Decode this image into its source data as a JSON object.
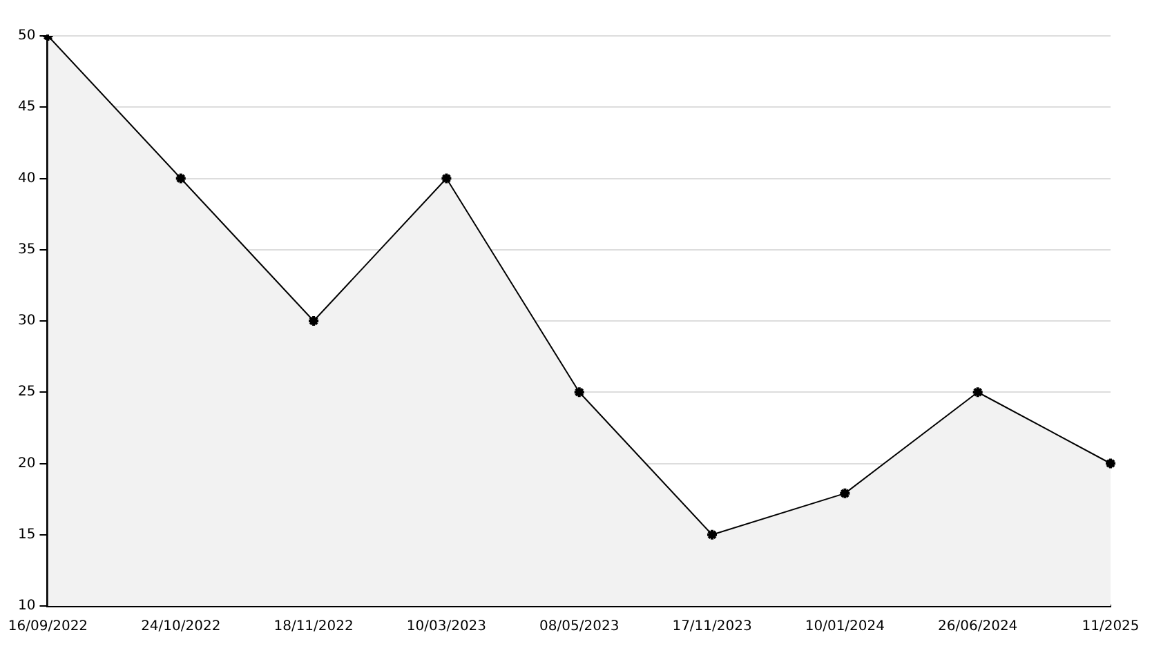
{
  "chart_data": {
    "type": "area",
    "categories": [
      "16/09/2022",
      "24/10/2022",
      "18/11/2022",
      "10/03/2023",
      "08/05/2023",
      "17/11/2023",
      "10/01/2024",
      "26/06/2024",
      "11/2025"
    ],
    "series": [
      {
        "color": "#000000",
        "values": [
          50,
          40,
          30,
          40,
          25,
          15,
          17.9,
          25,
          20
        ]
      }
    ],
    "ylim": [
      10,
      50
    ],
    "yticks": [
      10,
      15,
      20,
      25,
      30,
      35,
      40,
      45,
      50
    ],
    "grid": "y",
    "legend": false,
    "marker": "cross",
    "line_style": "solid"
  }
}
